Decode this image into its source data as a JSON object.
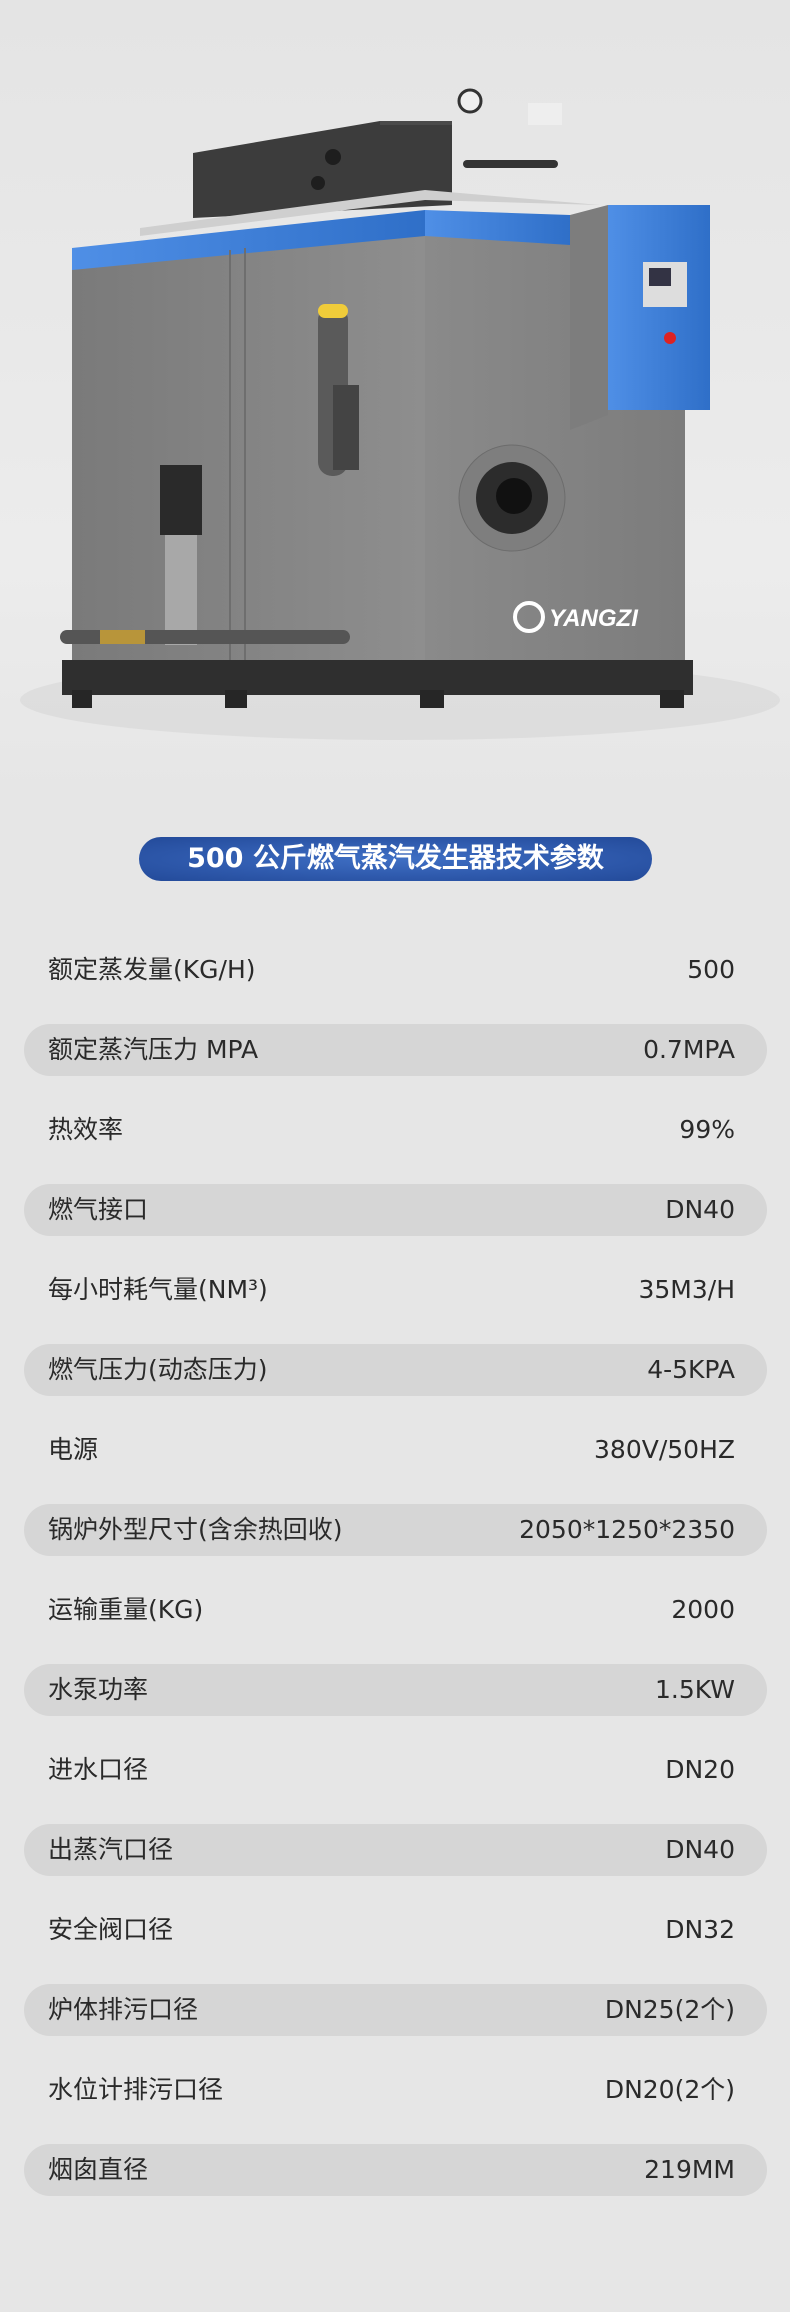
{
  "hero": {
    "brand_logo_text": "YANGZI",
    "accent_blue": "#3a7ad6"
  },
  "title": "500 公斤燃气蒸汽发生器技术参数",
  "colors": {
    "title_bg": "#2f5aad",
    "band_bg": "#d6d6d6",
    "page_bg": "#e6e6e6"
  },
  "specs": [
    {
      "label": "额定蒸发量(KG/H)",
      "value": "500"
    },
    {
      "label": "额定蒸汽压力 MPA",
      "value": "0.7MPA"
    },
    {
      "label": "热效率",
      "value": "99%"
    },
    {
      "label": "燃气接口",
      "value": "DN40"
    },
    {
      "label": "每小时耗气量(NM³)",
      "value": "35M3/H"
    },
    {
      "label": "燃气压力(动态压力)",
      "value": "4-5KPA"
    },
    {
      "label": "电源",
      "value": "380V/50HZ"
    },
    {
      "label": "锅炉外型尺寸(含余热回收)",
      "value": "2050*1250*2350"
    },
    {
      "label": "运输重量(KG)",
      "value": "2000"
    },
    {
      "label": "水泵功率",
      "value": "1.5KW"
    },
    {
      "label": "进水口径",
      "value": "DN20"
    },
    {
      "label": "出蒸汽口径",
      "value": "DN40"
    },
    {
      "label": "安全阀口径",
      "value": "DN32"
    },
    {
      "label": "炉体排污口径",
      "value": "DN25(2个)"
    },
    {
      "label": "水位计排污口径",
      "value": "DN20(2个)"
    },
    {
      "label": "烟囱直径",
      "value": "219MM"
    }
  ]
}
